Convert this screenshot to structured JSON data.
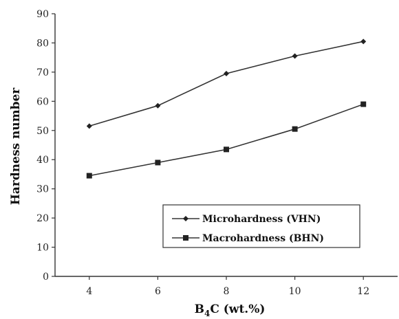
{
  "chart_data": {
    "type": "line",
    "x": [
      4,
      6,
      8,
      10,
      12
    ],
    "xlim": [
      3,
      13
    ],
    "ylim": [
      0,
      90
    ],
    "xticks": [
      4,
      6,
      8,
      10,
      12
    ],
    "yticks": [
      0,
      10,
      20,
      30,
      40,
      50,
      60,
      70,
      80,
      90
    ],
    "ylabel": "Hardness number",
    "xlabel": {
      "base": "B",
      "sub": "4",
      "rest": "C (wt.%)"
    },
    "grid": false,
    "legend_position": "lower-right",
    "series": [
      {
        "name": "Microhardness (VHN)",
        "marker": "diamond",
        "color": "#333333",
        "values": [
          51.5,
          58.5,
          69.5,
          75.5,
          80.5
        ]
      },
      {
        "name": "Macrohardness (BHN)",
        "marker": "square",
        "color": "#333333",
        "values": [
          34.5,
          39,
          43.5,
          50.5,
          59
        ]
      }
    ]
  }
}
